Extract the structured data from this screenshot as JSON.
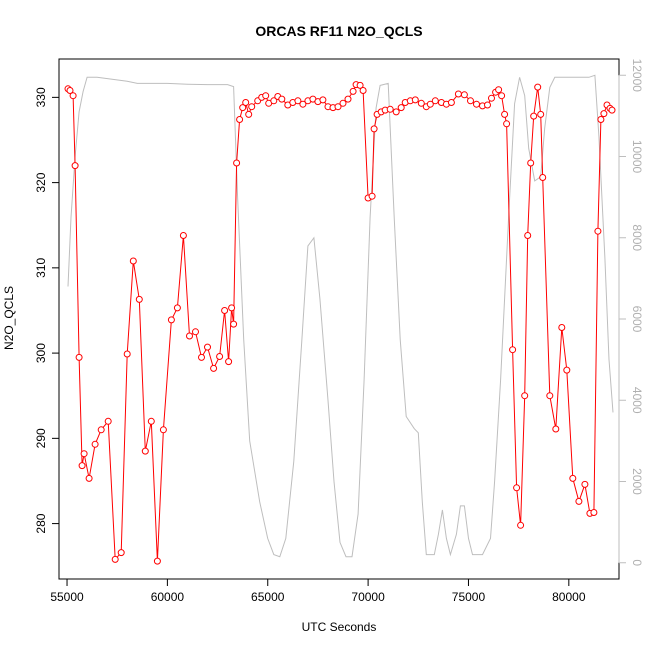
{
  "chart_data": {
    "type": "line",
    "title": "ORCAS RF11 N2O_QCLS",
    "xlabel": "UTC Seconds",
    "ylabel": "N2O_QCLS",
    "y2label": "",
    "xlim": [
      54600,
      82500
    ],
    "ylim": [
      273.5,
      334.5
    ],
    "y2lim": [
      -400,
      12400
    ],
    "x_ticks": [
      55000,
      60000,
      65000,
      70000,
      75000,
      80000
    ],
    "x_tick_labels": [
      "55000",
      "60000",
      "65000",
      "70000",
      "75000",
      "80000"
    ],
    "y_ticks": [
      280,
      290,
      300,
      310,
      320,
      330
    ],
    "y_tick_labels": [
      "280",
      "290",
      "300",
      "310",
      "320",
      "330"
    ],
    "y2_ticks": [
      0,
      2000,
      4000,
      6000,
      8000,
      10000,
      12000
    ],
    "y2_tick_labels": [
      "0",
      "2000",
      "4000",
      "6000",
      "8000",
      "10000",
      "12000"
    ],
    "grid": false,
    "colors": {
      "n2o": "#ff0000",
      "altitude": "#bebebe",
      "axis": "#000000",
      "axis_right": "#bebebe"
    },
    "series": [
      {
        "role": "n2o",
        "style": "line+open-circles",
        "color": "#ff0000",
        "points": [
          [
            55050,
            331.0
          ],
          [
            55150,
            330.8
          ],
          [
            55300,
            330.2
          ],
          [
            55400,
            322
          ],
          [
            55600,
            299.5
          ],
          [
            55750,
            286.8
          ],
          [
            55850,
            288.2
          ],
          [
            56100,
            285.3
          ],
          [
            56400,
            289.3
          ],
          [
            56700,
            291.0
          ],
          [
            57050,
            292.0
          ],
          [
            57400,
            275.8
          ],
          [
            57700,
            276.6
          ],
          [
            58000,
            299.9
          ],
          [
            58300,
            310.8
          ],
          [
            58600,
            306.3
          ],
          [
            58900,
            288.5
          ],
          [
            59200,
            292.0
          ],
          [
            59500,
            275.6
          ],
          [
            59800,
            291.0
          ],
          [
            60200,
            303.9
          ],
          [
            60500,
            305.3
          ],
          [
            60800,
            313.8
          ],
          [
            61100,
            302.0
          ],
          [
            61400,
            302.5
          ],
          [
            61700,
            299.5
          ],
          [
            62000,
            300.7
          ],
          [
            62300,
            298.2
          ],
          [
            62600,
            299.6
          ],
          [
            62850,
            305.0
          ],
          [
            63050,
            299.0
          ],
          [
            63200,
            305.3
          ],
          [
            63300,
            303.4
          ],
          [
            63450,
            322.3
          ],
          [
            63600,
            327.4
          ],
          [
            63750,
            328.8
          ],
          [
            63900,
            329.4
          ],
          [
            64050,
            328.0
          ],
          [
            64200,
            328.9
          ],
          [
            64500,
            329.6
          ],
          [
            64700,
            330.0
          ],
          [
            64900,
            330.2
          ],
          [
            65050,
            329.3
          ],
          [
            65300,
            329.6
          ],
          [
            65500,
            330.1
          ],
          [
            65700,
            329.8
          ],
          [
            66000,
            329.1
          ],
          [
            66250,
            329.4
          ],
          [
            66500,
            329.6
          ],
          [
            66750,
            329.2
          ],
          [
            67000,
            329.6
          ],
          [
            67250,
            329.8
          ],
          [
            67500,
            329.5
          ],
          [
            67750,
            329.7
          ],
          [
            68000,
            328.9
          ],
          [
            68250,
            328.8
          ],
          [
            68500,
            328.9
          ],
          [
            68750,
            329.3
          ],
          [
            69000,
            329.8
          ],
          [
            69250,
            330.7
          ],
          [
            69400,
            331.5
          ],
          [
            69600,
            331.4
          ],
          [
            69750,
            330.8
          ],
          [
            70000,
            318.2
          ],
          [
            70200,
            318.4
          ],
          [
            70300,
            326.3
          ],
          [
            70450,
            328.0
          ],
          [
            70650,
            328.3
          ],
          [
            70850,
            328.5
          ],
          [
            71100,
            328.6
          ],
          [
            71400,
            328.3
          ],
          [
            71650,
            328.8
          ],
          [
            71850,
            329.4
          ],
          [
            72100,
            329.6
          ],
          [
            72350,
            329.7
          ],
          [
            72650,
            329.3
          ],
          [
            72900,
            328.9
          ],
          [
            73100,
            329.2
          ],
          [
            73350,
            329.6
          ],
          [
            73650,
            329.4
          ],
          [
            73900,
            329.2
          ],
          [
            74150,
            329.4
          ],
          [
            74500,
            330.4
          ],
          [
            74800,
            330.3
          ],
          [
            75100,
            329.6
          ],
          [
            75400,
            329.2
          ],
          [
            75700,
            329.0
          ],
          [
            75950,
            329.1
          ],
          [
            76150,
            329.9
          ],
          [
            76350,
            330.6
          ],
          [
            76500,
            330.9
          ],
          [
            76650,
            330.2
          ],
          [
            76800,
            328.0
          ],
          [
            76900,
            326.9
          ],
          [
            77200,
            300.4
          ],
          [
            77400,
            284.2
          ],
          [
            77600,
            279.8
          ],
          [
            77800,
            295.0
          ],
          [
            77950,
            313.8
          ],
          [
            78100,
            322.3
          ],
          [
            78250,
            327.8
          ],
          [
            78450,
            331.2
          ],
          [
            78600,
            328.0
          ],
          [
            78700,
            320.6
          ],
          [
            79050,
            295.0
          ],
          [
            79350,
            291.1
          ],
          [
            79650,
            303.0
          ],
          [
            79900,
            298.0
          ],
          [
            80200,
            285.3
          ],
          [
            80500,
            282.6
          ],
          [
            80800,
            284.6
          ],
          [
            81050,
            281.2
          ],
          [
            81250,
            281.3
          ],
          [
            81450,
            314.3
          ],
          [
            81600,
            327.4
          ],
          [
            81750,
            328.1
          ],
          [
            81900,
            329.1
          ],
          [
            82050,
            328.7
          ],
          [
            82150,
            328.5
          ]
        ]
      },
      {
        "role": "altitude",
        "style": "line",
        "color": "#bebebe",
        "points": [
          [
            55050,
            6800
          ],
          [
            55200,
            8500
          ],
          [
            55400,
            10000
          ],
          [
            55600,
            11100
          ],
          [
            55800,
            11600
          ],
          [
            56000,
            11950
          ],
          [
            56500,
            11950
          ],
          [
            58000,
            11850
          ],
          [
            58500,
            11800
          ],
          [
            60000,
            11800
          ],
          [
            61000,
            11780
          ],
          [
            62000,
            11770
          ],
          [
            63000,
            11770
          ],
          [
            63300,
            11720
          ],
          [
            63500,
            9000
          ],
          [
            63800,
            5500
          ],
          [
            64100,
            3000
          ],
          [
            64600,
            1500
          ],
          [
            65000,
            600
          ],
          [
            65300,
            200
          ],
          [
            65600,
            150
          ],
          [
            65900,
            600
          ],
          [
            66300,
            2500
          ],
          [
            66700,
            5500
          ],
          [
            67000,
            7800
          ],
          [
            67300,
            8000
          ],
          [
            67600,
            6500
          ],
          [
            68000,
            4000
          ],
          [
            68300,
            2000
          ],
          [
            68600,
            500
          ],
          [
            68900,
            150
          ],
          [
            69200,
            150
          ],
          [
            69500,
            1200
          ],
          [
            69800,
            4500
          ],
          [
            70100,
            8500
          ],
          [
            70400,
            11200
          ],
          [
            70600,
            11750
          ],
          [
            71000,
            11800
          ],
          [
            71300,
            8500
          ],
          [
            71600,
            5500
          ],
          [
            71900,
            3600
          ],
          [
            72300,
            3300
          ],
          [
            72500,
            3200
          ],
          [
            72700,
            1500
          ],
          [
            72900,
            200
          ],
          [
            73100,
            200
          ],
          [
            73300,
            200
          ],
          [
            73500,
            700
          ],
          [
            73700,
            1300
          ],
          [
            73900,
            600
          ],
          [
            74100,
            200
          ],
          [
            74400,
            700
          ],
          [
            74600,
            1400
          ],
          [
            74800,
            1400
          ],
          [
            75000,
            600
          ],
          [
            75200,
            200
          ],
          [
            75700,
            200
          ],
          [
            76100,
            600
          ],
          [
            76300,
            2000
          ],
          [
            76600,
            4500
          ],
          [
            77000,
            8500
          ],
          [
            77300,
            11300
          ],
          [
            77550,
            11950
          ],
          [
            77800,
            11500
          ],
          [
            78000,
            10200
          ],
          [
            78300,
            9400
          ],
          [
            78600,
            9500
          ],
          [
            78800,
            10700
          ],
          [
            79050,
            11700
          ],
          [
            79300,
            11950
          ],
          [
            80000,
            11950
          ],
          [
            81000,
            11950
          ],
          [
            81300,
            12000
          ],
          [
            81500,
            10500
          ],
          [
            81800,
            7500
          ],
          [
            82000,
            5000
          ],
          [
            82200,
            3700
          ]
        ]
      }
    ]
  }
}
